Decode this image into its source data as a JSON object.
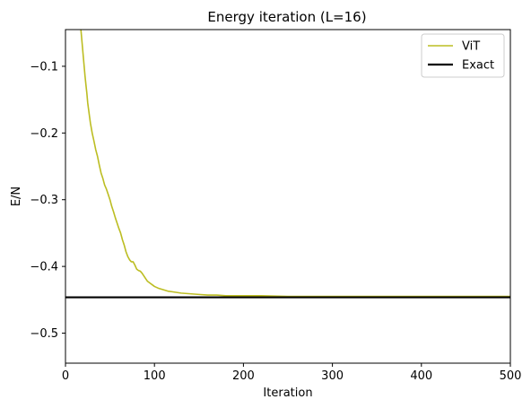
{
  "chart_data": {
    "type": "line",
    "title": "Energy iteration (L=16)",
    "xlabel": "Iteration",
    "ylabel": "E/N",
    "xlim": [
      0,
      500
    ],
    "ylim": [
      -0.545,
      -0.045
    ],
    "x_ticks": [
      0,
      100,
      200,
      300,
      400,
      500
    ],
    "x_tick_labels": [
      "0",
      "100",
      "200",
      "300",
      "400",
      "500"
    ],
    "y_ticks": [
      -0.1,
      -0.2,
      -0.3,
      -0.4,
      -0.5
    ],
    "y_tick_labels": [
      "−0.1",
      "−0.2",
      "−0.3",
      "−0.4",
      "−0.5"
    ],
    "grid": false,
    "legend_position": "top-right",
    "series": [
      {
        "name": "ViT",
        "color": "#bcbd22",
        "x": [
          17,
          18,
          19,
          20,
          21,
          22,
          23,
          24,
          25,
          26,
          27,
          28,
          30,
          32,
          34,
          36,
          38,
          40,
          42,
          44,
          46,
          48,
          50,
          52,
          54,
          56,
          58,
          60,
          62,
          64,
          66,
          68,
          70,
          72,
          74,
          76,
          78,
          80,
          82,
          84,
          86,
          88,
          90,
          92,
          95,
          98,
          100,
          105,
          110,
          115,
          120,
          125,
          130,
          140,
          150,
          160,
          170,
          180,
          200,
          220,
          250,
          300,
          350,
          400,
          450,
          500
        ],
        "y": [
          -0.04,
          -0.055,
          -0.07,
          -0.085,
          -0.1,
          -0.115,
          -0.128,
          -0.14,
          -0.155,
          -0.165,
          -0.175,
          -0.185,
          -0.2,
          -0.212,
          -0.225,
          -0.235,
          -0.248,
          -0.26,
          -0.268,
          -0.278,
          -0.284,
          -0.292,
          -0.3,
          -0.31,
          -0.318,
          -0.327,
          -0.335,
          -0.343,
          -0.35,
          -0.36,
          -0.368,
          -0.378,
          -0.385,
          -0.39,
          -0.393,
          -0.393,
          -0.398,
          -0.404,
          -0.406,
          -0.407,
          -0.41,
          -0.414,
          -0.418,
          -0.422,
          -0.425,
          -0.428,
          -0.43,
          -0.433,
          -0.435,
          -0.437,
          -0.438,
          -0.439,
          -0.44,
          -0.441,
          -0.442,
          -0.443,
          -0.443,
          -0.444,
          -0.444,
          -0.444,
          -0.445,
          -0.445,
          -0.445,
          -0.445,
          -0.445,
          -0.445
        ]
      },
      {
        "name": "Exact",
        "color": "#000000",
        "x": [
          0,
          500
        ],
        "y": [
          -0.4463,
          -0.4463
        ]
      }
    ]
  }
}
